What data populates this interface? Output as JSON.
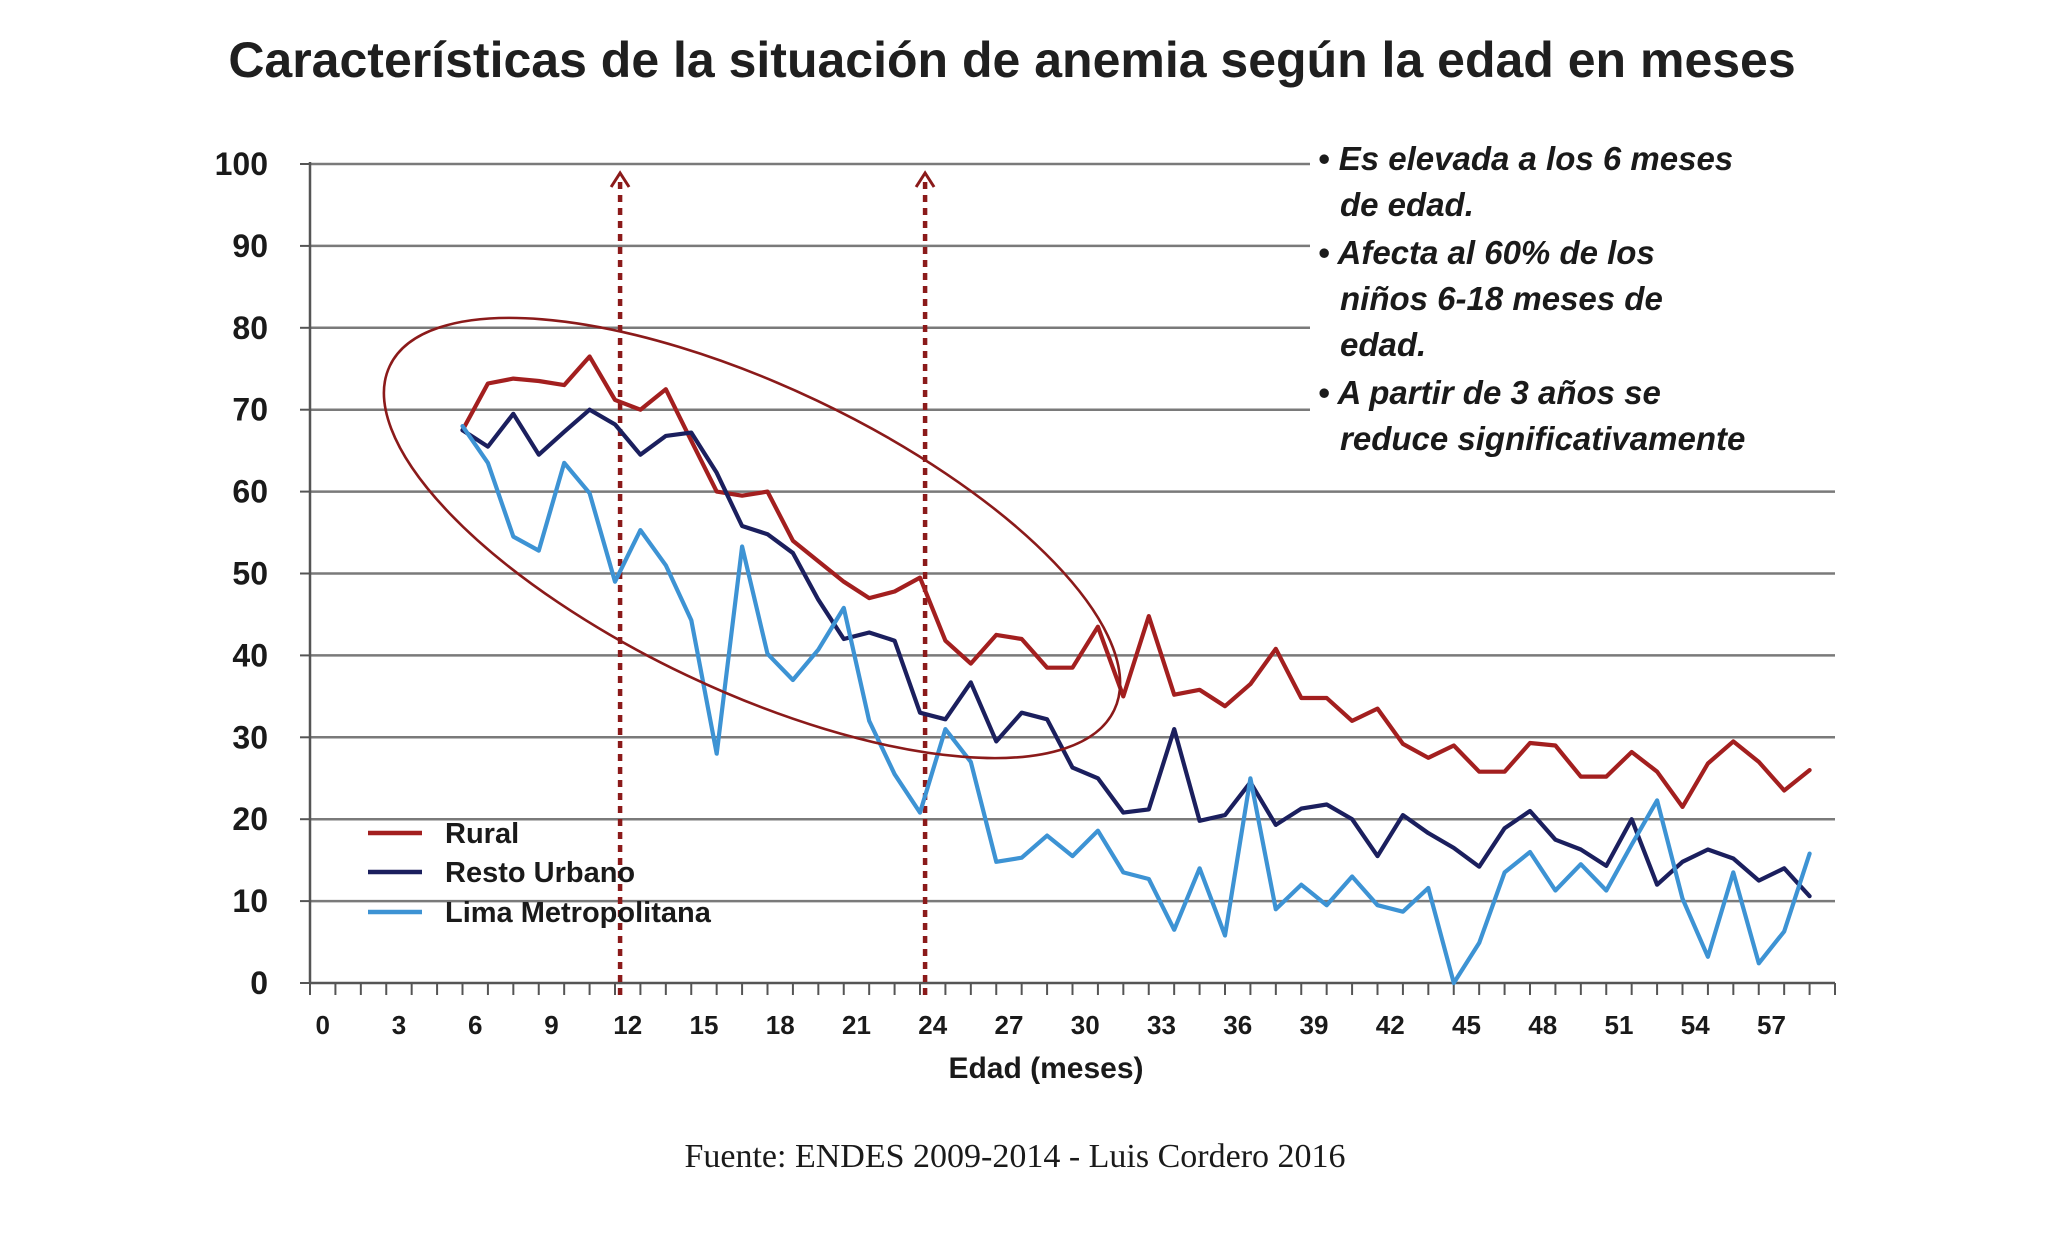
{
  "chart_data": {
    "type": "line",
    "title": "Características de la situación de anemia según la edad en meses",
    "xlabel": "Edad (meses)",
    "ylabel": "",
    "xlim": [
      0,
      60
    ],
    "ylim": [
      0,
      100
    ],
    "y_ticks": [
      "0",
      "10",
      "20",
      "30",
      "40",
      "50",
      "60",
      "70",
      "80",
      "90",
      "100"
    ],
    "x_ticks": [
      "0",
      "3",
      "6",
      "9",
      "12",
      "15",
      "18",
      "21",
      "24",
      "27",
      "30",
      "33",
      "36",
      "39",
      "42",
      "45",
      "48",
      "51",
      "54",
      "57"
    ],
    "grid": "horizontal",
    "legend_position": "bottom-left",
    "x": [
      6,
      7,
      8,
      9,
      10,
      11,
      12,
      13,
      14,
      15,
      16,
      17,
      18,
      19,
      20,
      21,
      22,
      23,
      24,
      25,
      26,
      27,
      28,
      29,
      30,
      31,
      32,
      33,
      34,
      35,
      36,
      37,
      38,
      39,
      40,
      41,
      42,
      43,
      44,
      45,
      46,
      47,
      48,
      49,
      50,
      51,
      52,
      53,
      54,
      55,
      56,
      57,
      58,
      59
    ],
    "series": [
      {
        "name": "Rural",
        "color": "#a31f1f",
        "values": [
          67.5,
          73.2,
          73.8,
          73.5,
          73.0,
          76.5,
          71.2,
          70.0,
          72.5,
          66.2,
          60.0,
          59.5,
          60.0,
          54.0,
          51.5,
          49.0,
          47.0,
          47.8,
          49.5,
          41.8,
          39.0,
          42.5,
          42.0,
          38.5,
          38.5,
          43.5,
          35.0,
          44.8,
          35.2,
          35.8,
          33.8,
          36.5,
          40.8,
          34.8,
          34.8,
          32.0,
          33.5,
          29.2,
          27.5,
          29.0,
          25.8,
          25.8,
          29.3,
          29.0,
          25.2,
          25.2,
          28.2,
          25.8,
          21.5,
          26.8,
          29.5,
          27.0,
          23.5,
          26.0
        ]
      },
      {
        "name": "Resto Urbano",
        "color": "#1b1f5e",
        "values": [
          67.5,
          65.5,
          69.5,
          64.5,
          67.3,
          70.0,
          68.2,
          64.5,
          66.8,
          67.2,
          62.3,
          55.8,
          54.8,
          52.5,
          46.8,
          42.0,
          42.8,
          41.8,
          33.0,
          32.2,
          36.7,
          29.5,
          33.0,
          32.2,
          26.3,
          25.0,
          20.8,
          21.2,
          31.0,
          19.8,
          20.5,
          24.5,
          19.3,
          21.3,
          21.8,
          20.0,
          15.5,
          20.5,
          18.3,
          16.5,
          14.2,
          18.9,
          21.0,
          17.5,
          16.3,
          14.3,
          20.0,
          12.0,
          14.8,
          16.3,
          15.2,
          12.5,
          14.0,
          10.6
        ]
      },
      {
        "name": "Lima Metropolitana",
        "color": "#3d93d4",
        "values": [
          68.0,
          63.5,
          54.5,
          52.8,
          63.5,
          59.8,
          49.0,
          55.3,
          51.0,
          44.3,
          28.0,
          53.3,
          40.2,
          37.0,
          40.7,
          45.8,
          32.0,
          25.5,
          20.8,
          31.0,
          27.0,
          14.8,
          15.3,
          18.0,
          15.5,
          18.6,
          13.5,
          12.7,
          6.5,
          14.0,
          5.8,
          25.0,
          9.0,
          12.0,
          9.5,
          13.0,
          9.5,
          8.7,
          11.6,
          0.0,
          4.9,
          13.5,
          16.0,
          11.3,
          14.5,
          11.3,
          16.9,
          22.3,
          10.3,
          3.2,
          13.5,
          2.4,
          6.3,
          15.8
        ]
      }
    ],
    "annotations": {
      "notes": [
        [
          "• Es elevada a los 6 meses",
          "de edad."
        ],
        [
          "• Afecta al 60% de los",
          "niños 6-18 meses de",
          "edad."
        ],
        [
          "• A partir de 3 años se",
          "reduce significativamente"
        ]
      ],
      "markers_x": [
        12,
        24
      ],
      "marker_color": "#8b1a1a",
      "ellipse_color": "#8b1a1a"
    },
    "source": "Fuente: ENDES 2009-2014 - Luis Cordero 2016"
  }
}
